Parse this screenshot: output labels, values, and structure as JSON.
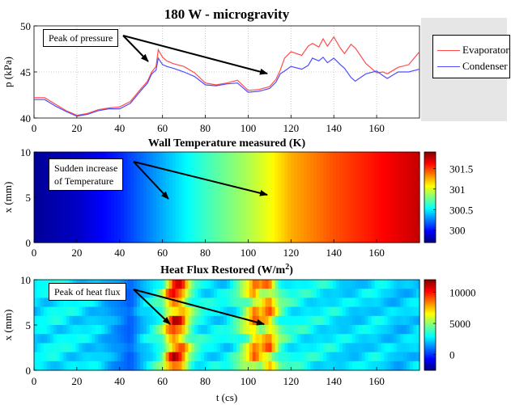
{
  "colors": {
    "evaporator": "#ff4d4d",
    "condenser": "#4d4dff"
  },
  "legend": {
    "evaporator": "Evaporator",
    "condenser": "Condenser"
  },
  "annotations": {
    "pressure": "Peak of pressure",
    "temperature_line1": "Sudden increase",
    "temperature_line2": "of Temperature",
    "heatflux": "Peak of heat flux"
  },
  "chart_data": [
    {
      "type": "line",
      "title": "180 W - microgravity",
      "xlabel": "",
      "ylabel": "p (kPa)",
      "xlim": [
        0,
        180
      ],
      "ylim": [
        40,
        50
      ],
      "xticks": [
        0,
        20,
        40,
        60,
        80,
        100,
        120,
        140,
        160
      ],
      "yticks": [
        40,
        45,
        50
      ],
      "grid": true,
      "legend_position": "right",
      "x": [
        0,
        5,
        10,
        15,
        20,
        25,
        30,
        35,
        40,
        45,
        50,
        53,
        55,
        57,
        58,
        60,
        62,
        65,
        70,
        75,
        80,
        85,
        90,
        95,
        100,
        105,
        110,
        113,
        115,
        117,
        120,
        125,
        128,
        130,
        133,
        135,
        137,
        140,
        143,
        145,
        148,
        150,
        155,
        160,
        163,
        165,
        170,
        175,
        180
      ],
      "series": [
        {
          "name": "Evaporator",
          "values": [
            42.2,
            42.2,
            41.5,
            40.8,
            40.3,
            40.5,
            40.9,
            41.1,
            41.2,
            41.8,
            43.2,
            44.0,
            45.0,
            45.6,
            47.4,
            46.6,
            46.2,
            45.9,
            45.6,
            44.9,
            43.8,
            43.6,
            43.8,
            44.1,
            43.0,
            43.1,
            43.4,
            44.2,
            45.2,
            46.5,
            47.2,
            46.8,
            47.8,
            48.1,
            47.7,
            48.6,
            47.8,
            48.8,
            47.6,
            47.0,
            48.0,
            47.6,
            45.9,
            44.9,
            45.0,
            44.8,
            45.5,
            45.8,
            47.2
          ]
        },
        {
          "name": "Condenser",
          "values": [
            42.0,
            42.0,
            41.3,
            40.7,
            40.2,
            40.4,
            40.8,
            41.0,
            41.0,
            41.6,
            43.0,
            43.8,
            44.8,
            45.2,
            46.5,
            45.8,
            45.6,
            45.4,
            45.0,
            44.5,
            43.6,
            43.5,
            43.7,
            43.8,
            42.8,
            42.9,
            43.2,
            43.9,
            44.8,
            45.1,
            45.6,
            45.3,
            45.7,
            46.5,
            46.2,
            46.6,
            46.0,
            46.5,
            45.8,
            45.4,
            44.4,
            44.0,
            44.8,
            45.1,
            44.6,
            44.3,
            45.0,
            45.0,
            45.3
          ]
        }
      ]
    },
    {
      "type": "heatmap",
      "title": "Wall Temperature measured (K)",
      "xlabel": "",
      "ylabel": "x (mm)",
      "xlim": [
        0,
        180
      ],
      "ylim": [
        0,
        10
      ],
      "xticks": [
        0,
        20,
        40,
        60,
        80,
        100,
        120,
        140,
        160
      ],
      "yticks": [
        0,
        5,
        10
      ],
      "colorbar_ticks": [
        300,
        300.5,
        301,
        301.5
      ],
      "colorbar_range": [
        299.7,
        301.9
      ],
      "x": [
        0,
        20,
        40,
        60,
        80,
        100,
        110,
        120,
        140,
        160,
        180
      ],
      "values": [
        299.75,
        299.85,
        300.05,
        300.35,
        300.65,
        300.9,
        301.05,
        301.25,
        301.45,
        301.6,
        301.75
      ]
    },
    {
      "type": "heatmap",
      "title": "Heat Flux Restored (W/m²)",
      "xlabel": "t (cs)",
      "ylabel": "x (mm)",
      "xlim": [
        0,
        180
      ],
      "ylim": [
        0,
        10
      ],
      "xticks": [
        0,
        20,
        40,
        60,
        80,
        100,
        120,
        140,
        160
      ],
      "yticks": [
        0,
        5,
        10
      ],
      "colorbar_ticks": [
        0,
        5000,
        10000
      ],
      "colorbar_range": [
        -2500,
        12000
      ],
      "x": [
        0,
        10,
        20,
        30,
        40,
        45,
        50,
        55,
        60,
        62,
        65,
        68,
        70,
        72,
        75,
        80,
        90,
        95,
        100,
        103,
        106,
        108,
        110,
        112,
        115,
        120,
        130,
        140,
        150,
        160,
        170,
        180
      ],
      "values": [
        3000,
        3500,
        3200,
        2800,
        1500,
        800,
        2500,
        3500,
        5000,
        8000,
        11000,
        10500,
        9000,
        6500,
        4500,
        3500,
        3300,
        4500,
        7000,
        9500,
        8000,
        9000,
        9500,
        7500,
        5000,
        3800,
        3500,
        3300,
        2800,
        3200,
        2500,
        3000
      ]
    }
  ]
}
